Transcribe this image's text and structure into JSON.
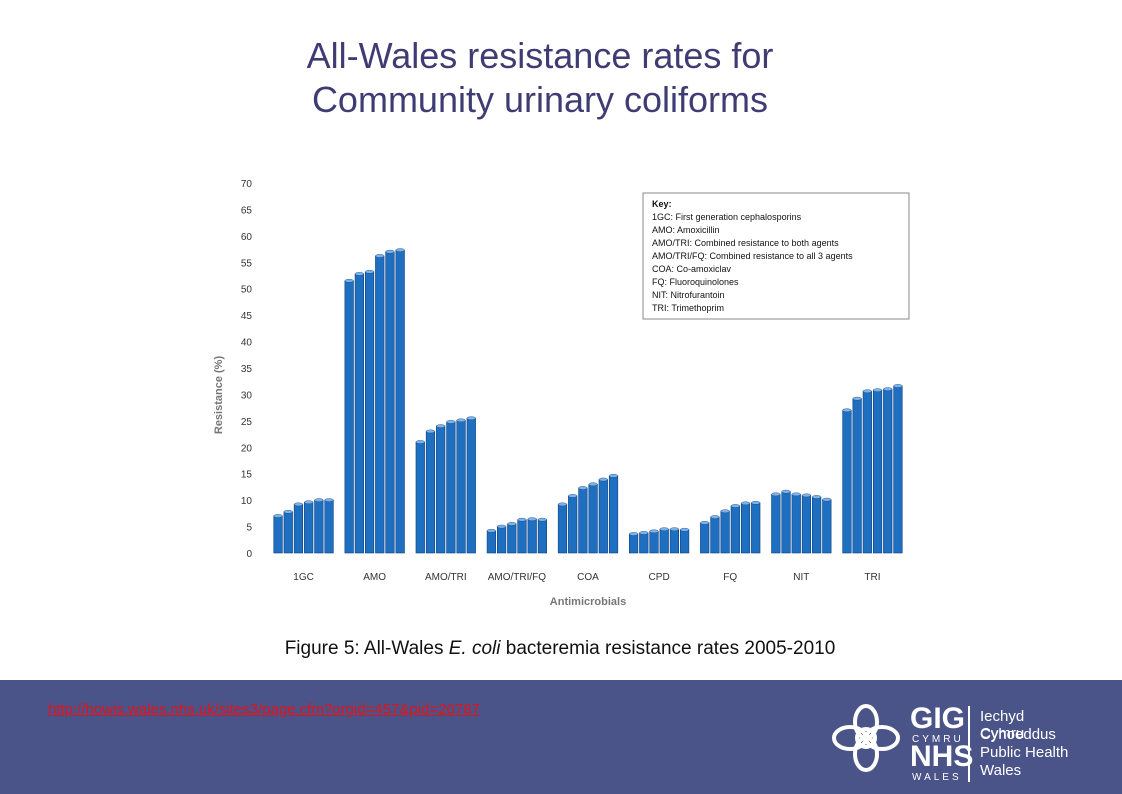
{
  "slide": {
    "title_line1": "All-Wales resistance rates for",
    "title_line2": "Community urinary coliforms",
    "caption_prefix": "Figure 5: All-Wales ",
    "caption_italic": "E. coli",
    "caption_suffix": " bacteremia resistance rates 2005-2010",
    "source_link": "http://howis.wales.nhs.uk/sites3/page.cfm?orgid=457&pid=20787"
  },
  "logo": {
    "gig": "GIG",
    "cymru": "CYMRU",
    "nhs": "NHS",
    "wales": "WALES",
    "line1": "Iechyd Cyhoeddus",
    "line2": "Cymru",
    "line3": "Public Health",
    "line4": "Wales"
  },
  "colors": {
    "title": "#3f3c74",
    "bar": "#1f6fc0",
    "bar_top": "#7fb3e6",
    "footer": "#4a5488",
    "link": "#e2141b"
  },
  "chart_data": {
    "type": "bar",
    "xlabel": "Antimicrobials",
    "ylabel": "Resistance (%)",
    "ylim": [
      0,
      70
    ],
    "yticks": [
      0,
      5,
      10,
      15,
      20,
      25,
      30,
      35,
      40,
      45,
      50,
      55,
      60,
      65,
      70
    ],
    "grid": false,
    "legend_position": "top-right",
    "categories": [
      "1GC",
      "AMO",
      "AMO/TRI",
      "AMO/TRI/FQ",
      "COA",
      "CPD",
      "FQ",
      "NIT",
      "TRI"
    ],
    "groups": [
      [
        7.0,
        7.8,
        9.2,
        9.6,
        10.0,
        10.0
      ],
      [
        51.5,
        52.8,
        53.2,
        56.2,
        57.0,
        57.3
      ],
      [
        21.0,
        23.0,
        24.0,
        24.8,
        25.1,
        25.5
      ],
      [
        4.2,
        5.0,
        5.5,
        6.3,
        6.4,
        6.3
      ],
      [
        9.2,
        10.8,
        12.3,
        13.0,
        13.9,
        14.6
      ],
      [
        3.6,
        3.8,
        4.1,
        4.5,
        4.5,
        4.4
      ],
      [
        5.7,
        6.8,
        7.9,
        8.9,
        9.4,
        9.5
      ],
      [
        11.1,
        11.6,
        11.1,
        10.9,
        10.6,
        10.1
      ],
      [
        27.0,
        29.2,
        30.6,
        30.8,
        31.0,
        31.6
      ]
    ],
    "key": {
      "title": "Key:",
      "lines": [
        "1GC: First generation cephalosporins",
        "AMO: Amoxicillin",
        "AMO/TRI: Combined resistance to both agents",
        "AMO/TRI/FQ: Combined resistance to all 3 agents",
        "COA: Co-amoxiclav",
        "FQ: Fluoroquinolones",
        "NIT: Nitrofurantoin",
        "TRI: Trimethoprim"
      ]
    }
  }
}
